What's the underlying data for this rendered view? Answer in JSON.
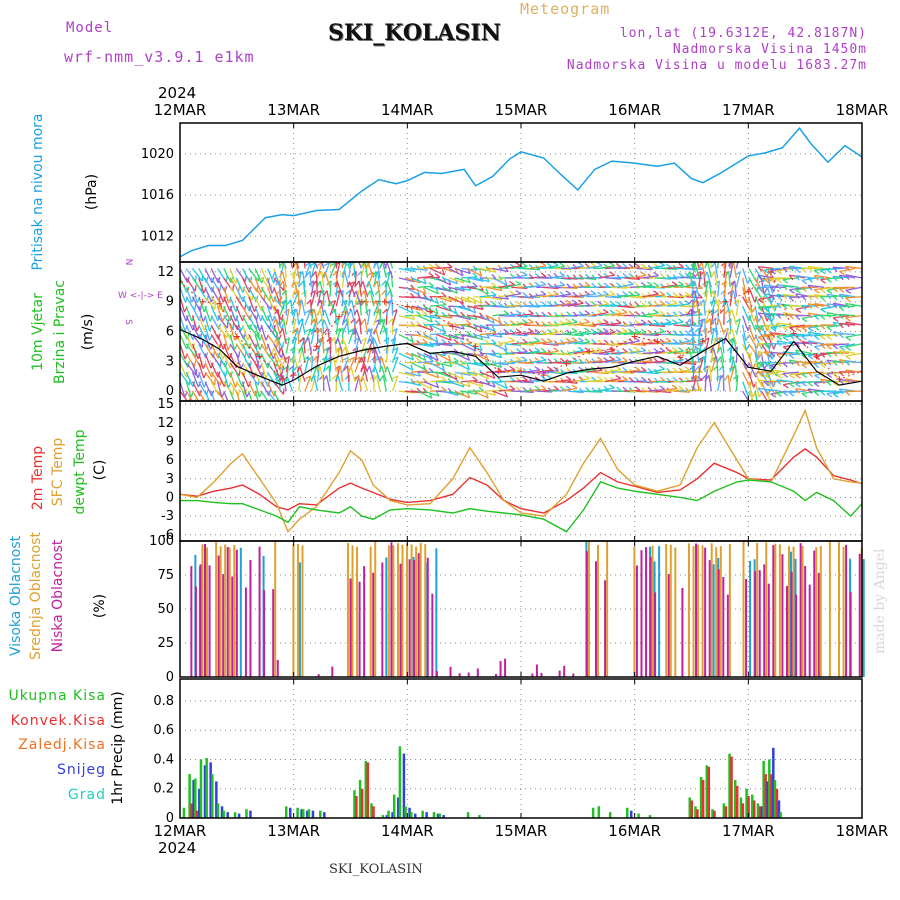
{
  "header": {
    "title": "SKI_KOLASIN",
    "model_label": "Model",
    "model_name": "wrf-nmm_v3.9.1 e1km",
    "meteogram": "Meteogram",
    "lonlat": "lon,lat (19.6312E, 42.8187N)",
    "altitude": "Nadmorska Visina 1450m",
    "model_altitude": "Nadmorska Visina u modelu 1683.27m",
    "footer": "SKI_KOLASIN",
    "watermark": "made by Angel"
  },
  "colors": {
    "pressure": "#1aa0e8",
    "wind_speed": "#000000",
    "gust": "#e83020",
    "temp2m": "#e83030",
    "sfc_temp": "#e0a030",
    "dewpt": "#20c020",
    "high_cloud": "#20a0d8",
    "mid_cloud": "#e0a030",
    "low_cloud": "#c020a0",
    "total_precip": "#20c020",
    "conv_precip": "#e83030",
    "frozen_precip": "#f07020",
    "snow": "#3040e0",
    "hail": "#20d0c0",
    "label_purple": "#b040c8",
    "meteogram": "#e0b060"
  },
  "chart_data": [
    {
      "type": "line",
      "panel": "pressure",
      "ylabel": "Pritisak na nivou mora",
      "unit": "(hPa)",
      "yticks": [
        1012,
        1016,
        1020
      ],
      "ylim": [
        1009.5,
        1023
      ],
      "x_year": "2024",
      "x_ticks": [
        "12MAR",
        "13MAR",
        "14MAR",
        "15MAR",
        "16MAR",
        "17MAR",
        "18MAR"
      ],
      "x": [
        0,
        0.1,
        0.25,
        0.4,
        0.55,
        0.75,
        0.9,
        1.0,
        1.2,
        1.4,
        1.6,
        1.75,
        1.9,
        2.0,
        2.15,
        2.3,
        2.5,
        2.6,
        2.75,
        2.9,
        3.0,
        3.2,
        3.35,
        3.5,
        3.65,
        3.8,
        4.0,
        4.2,
        4.35,
        4.5,
        4.6,
        4.75,
        5.0,
        5.15,
        5.3,
        5.45,
        5.55,
        5.7,
        5.85,
        6.0
      ],
      "series": [
        {
          "values": [
            1010.0,
            1010.6,
            1011.1,
            1011.1,
            1011.6,
            1013.8,
            1014.1,
            1014.0,
            1014.5,
            1014.6,
            1016.4,
            1017.5,
            1017.1,
            1017.4,
            1018.2,
            1018.1,
            1018.5,
            1016.9,
            1017.8,
            1019.5,
            1020.2,
            1019.6,
            1018.0,
            1016.5,
            1018.5,
            1019.3,
            1019.1,
            1018.8,
            1019.1,
            1017.6,
            1017.2,
            1018.1,
            1019.8,
            1020.1,
            1020.6,
            1022.5,
            1021.0,
            1019.2,
            1020.8,
            1019.7
          ]
        }
      ]
    },
    {
      "type": "line",
      "panel": "wind",
      "ylabel_1": "10m Vjetar",
      "ylabel_2": "Brzina i Pravac",
      "unit": "(m/s)",
      "yticks": [
        0,
        3,
        6,
        9,
        12
      ],
      "ylim": [
        -1,
        13
      ],
      "compass": {
        "n": "N",
        "w": "W",
        "e": "E",
        "s": "S",
        "arrows": "<-|->"
      },
      "barb_colors": [
        "#20c8e0",
        "#30d870",
        "#9060e0",
        "#e0d030",
        "#f09030",
        "#50b0ff",
        "#e04060"
      ],
      "x": [
        0,
        0.2,
        0.35,
        0.5,
        0.7,
        0.9,
        1.0,
        1.2,
        1.4,
        1.6,
        1.8,
        2.0,
        2.2,
        2.4,
        2.6,
        2.8,
        3.0,
        3.2,
        3.4,
        3.6,
        3.8,
        4.0,
        4.2,
        4.4,
        4.6,
        4.8,
        5.0,
        5.2,
        5.4,
        5.6,
        5.8,
        6.0
      ],
      "series": [
        {
          "values": [
            6.2,
            5.2,
            4.2,
            2.5,
            1.5,
            0.6,
            1.1,
            2.5,
            3.5,
            4.1,
            4.5,
            4.8,
            3.8,
            4.0,
            3.5,
            1.4,
            1.6,
            1.0,
            1.8,
            2.2,
            2.4,
            3.0,
            3.5,
            2.6,
            4.0,
            5.3,
            2.4,
            2.0,
            5.0,
            2.0,
            0.6,
            1.0
          ]
        },
        {
          "values": [
            11.0,
            9.0,
            8.8,
            5.5,
            3.5,
            1.2,
            1.6,
            4.5,
            7.5,
            9.0,
            9.0,
            8.5,
            8.0,
            6.5,
            4.5,
            2.0,
            2.0,
            1.6,
            2.8,
            4.0,
            4.2,
            5.5,
            5.0,
            3.4,
            5.0,
            9.0,
            10.0,
            12.0,
            5.8,
            3.5,
            1.2,
            2.0
          ]
        }
      ]
    },
    {
      "type": "line",
      "panel": "temperature",
      "ylabel_1": "2m Temp",
      "ylabel_2": "SFC Temp",
      "ylabel_3": "dewpt Temp",
      "unit": "(C)",
      "yticks": [
        -6,
        -3,
        0,
        3,
        6,
        9,
        12,
        15
      ],
      "ylim": [
        -7,
        15.5
      ],
      "x": [
        0,
        0.15,
        0.3,
        0.45,
        0.55,
        0.7,
        0.85,
        0.95,
        1.05,
        1.2,
        1.4,
        1.5,
        1.6,
        1.7,
        1.85,
        2.0,
        2.2,
        2.4,
        2.55,
        2.7,
        2.85,
        3.0,
        3.2,
        3.4,
        3.55,
        3.7,
        3.85,
        4.0,
        4.2,
        4.4,
        4.55,
        4.7,
        4.9,
        5.0,
        5.2,
        5.4,
        5.5,
        5.6,
        5.75,
        5.9,
        6.0
      ],
      "series": [
        {
          "values": [
            0.5,
            0.2,
            1.0,
            1.5,
            2.0,
            0.5,
            -1.5,
            -2.0,
            -1.0,
            -1.2,
            1.5,
            2.3,
            1.5,
            0.8,
            -0.3,
            -0.8,
            -0.5,
            0.5,
            3.2,
            2.0,
            -0.5,
            -1.8,
            -2.5,
            -0.5,
            1.5,
            4.0,
            2.5,
            1.8,
            0.8,
            1.2,
            3.0,
            5.5,
            4.0,
            3.0,
            2.8,
            6.5,
            7.8,
            6.5,
            3.5,
            2.8,
            2.2
          ]
        },
        {
          "values": [
            0.5,
            0.0,
            2.5,
            5.5,
            7.0,
            3.0,
            -1.0,
            -5.5,
            -3.5,
            -1.5,
            4.0,
            7.5,
            6.0,
            2.0,
            -0.5,
            -1.2,
            -1.0,
            3.0,
            8.0,
            4.0,
            -0.5,
            -2.5,
            -3.0,
            0.5,
            5.5,
            9.5,
            4.5,
            2.0,
            1.0,
            2.0,
            8.0,
            12.0,
            6.0,
            3.0,
            2.5,
            10.0,
            14.0,
            8.0,
            3.0,
            2.5,
            2.3
          ]
        },
        {
          "values": [
            -0.5,
            -0.5,
            -0.8,
            -1.0,
            -1.0,
            -2.0,
            -3.0,
            -4.0,
            -1.5,
            -2.0,
            -2.5,
            -1.5,
            -3.0,
            -3.5,
            -2.0,
            -1.8,
            -2.0,
            -2.5,
            -1.8,
            -2.2,
            -2.5,
            -2.8,
            -3.5,
            -5.5,
            -2.0,
            2.5,
            1.5,
            1.0,
            0.5,
            0.0,
            -0.5,
            1.0,
            2.5,
            2.8,
            2.5,
            1.0,
            -0.5,
            0.8,
            -0.5,
            -3.0,
            -1.0
          ]
        }
      ]
    },
    {
      "type": "bar",
      "panel": "clouds",
      "ylabel_1": "Visoka Oblacnost",
      "ylabel_2": "Srednja Oblacnost",
      "ylabel_3": "Niska Oblacnost",
      "unit": "(%)",
      "yticks": [
        0,
        25,
        50,
        75,
        100
      ],
      "ylim": [
        0,
        100
      ]
    },
    {
      "type": "bar",
      "panel": "precip",
      "legend": [
        "Ukupna Kisa",
        "Konvek.Kisa",
        "Zaledj.Kisa",
        "Snijeg",
        "Grad"
      ],
      "ylabel": "1hr Precip (mm)",
      "yticks": [
        0,
        0.2,
        0.4,
        0.6,
        0.8
      ],
      "ylim": [
        0,
        0.95
      ],
      "x": [
        0.05,
        0.1,
        0.15,
        0.2,
        0.25,
        0.3,
        0.35,
        0.4,
        0.5,
        0.6,
        0.95,
        1.05,
        1.1,
        1.15,
        1.25,
        1.55,
        1.6,
        1.65,
        1.7,
        1.8,
        1.85,
        1.9,
        1.95,
        2.0,
        2.05,
        2.15,
        2.25,
        2.3,
        2.55,
        2.65,
        3.65,
        3.7,
        3.8,
        3.95,
        4.05,
        4.15,
        4.5,
        4.55,
        4.6,
        4.65,
        4.7,
        4.8,
        4.85,
        4.9,
        4.95,
        5.0,
        5.05,
        5.1,
        5.15,
        5.2,
        5.25,
        5.3
      ],
      "series": [
        {
          "name": "Ukupna Kisa",
          "values": [
            0.07,
            0.3,
            0.27,
            0.4,
            0.41,
            0.3,
            0.1,
            0.05,
            0.04,
            0.06,
            0.08,
            0.07,
            0.06,
            0.06,
            0.05,
            0.19,
            0.26,
            0.39,
            0.1,
            0.02,
            0.05,
            0.16,
            0.49,
            0.08,
            0.04,
            0.05,
            0.04,
            0.03,
            0.04,
            0.02,
            0.07,
            0.08,
            0.04,
            0.07,
            0.03,
            0.02,
            0.14,
            0.08,
            0.28,
            0.36,
            0.06,
            0.1,
            0.44,
            0.26,
            0.14,
            0.2,
            0.16,
            0.1,
            0.39,
            0.4,
            0.26,
            0.04
          ]
        },
        {
          "name": "Konvek.Kisa",
          "values": [
            0,
            0.1,
            0.05,
            0,
            0,
            0,
            0,
            0,
            0,
            0,
            0,
            0,
            0,
            0,
            0,
            0.15,
            0.2,
            0.38,
            0.08,
            0,
            0,
            0,
            0,
            0,
            0,
            0,
            0,
            0,
            0,
            0,
            0,
            0,
            0,
            0,
            0,
            0,
            0.12,
            0.06,
            0.26,
            0.35,
            0.05,
            0.08,
            0.42,
            0.22,
            0.1,
            0.15,
            0.12,
            0.08,
            0.3,
            0.3,
            0.2,
            0
          ]
        },
        {
          "name": "Snijeg",
          "values": [
            0,
            0.26,
            0.2,
            0.36,
            0.38,
            0.25,
            0.08,
            0.04,
            0.03,
            0.05,
            0.07,
            0.06,
            0.05,
            0.05,
            0.04,
            0,
            0,
            0,
            0,
            0.02,
            0.04,
            0.14,
            0.44,
            0.07,
            0.03,
            0.04,
            0.03,
            0.02,
            0,
            0,
            0,
            0,
            0,
            0.05,
            0,
            0,
            0,
            0,
            0,
            0,
            0,
            0,
            0,
            0,
            0,
            0,
            0,
            0.08,
            0.25,
            0.48,
            0.12,
            0
          ]
        }
      ]
    }
  ]
}
